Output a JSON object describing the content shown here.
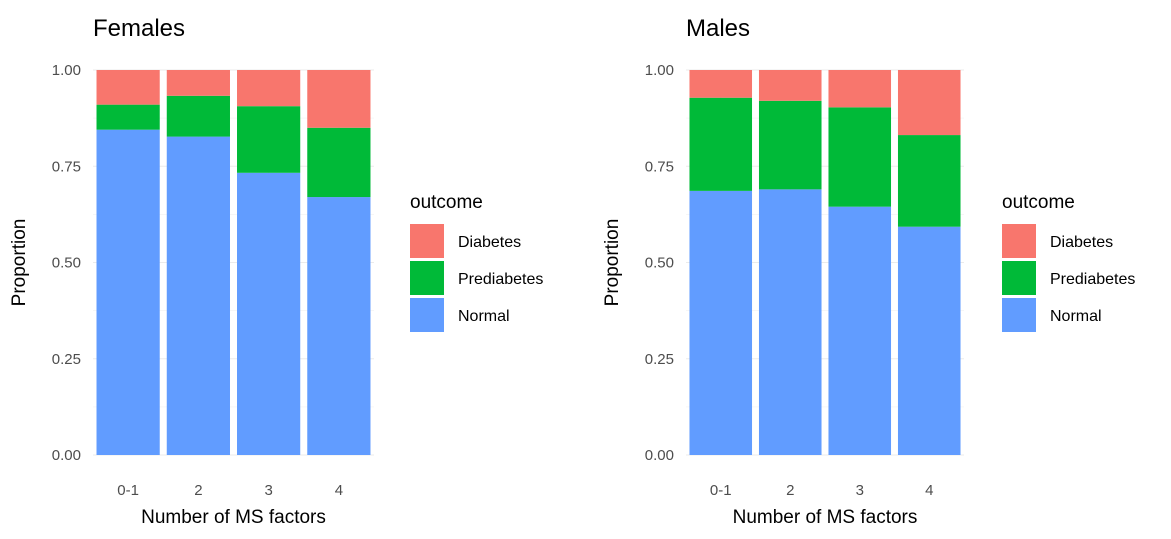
{
  "chart_data": [
    {
      "type": "bar",
      "stacked": true,
      "title": "Females",
      "xlabel": "Number of MS factors",
      "ylabel": "Proportion",
      "categories": [
        "0-1",
        "2",
        "3",
        "4"
      ],
      "ylim": [
        0,
        1
      ],
      "yticks": [
        "0.00",
        "0.25",
        "0.50",
        "0.75",
        "1.00"
      ],
      "series": [
        {
          "name": "Normal",
          "color": "#619CFF",
          "values": [
            0.845,
            0.827,
            0.733,
            0.67
          ]
        },
        {
          "name": "Prediabetes",
          "color": "#00BA38",
          "values": [
            0.065,
            0.106,
            0.173,
            0.18
          ]
        },
        {
          "name": "Diabetes",
          "color": "#F8766D",
          "values": [
            0.09,
            0.067,
            0.094,
            0.15
          ]
        }
      ],
      "legend": {
        "title": "outcome",
        "placement": "right",
        "items": [
          "Diabetes",
          "Prediabetes",
          "Normal"
        ]
      },
      "grid": true
    },
    {
      "type": "bar",
      "stacked": true,
      "title": "Males",
      "xlabel": "Number of MS factors",
      "ylabel": "Proportion",
      "categories": [
        "0-1",
        "2",
        "3",
        "4"
      ],
      "ylim": [
        0,
        1
      ],
      "yticks": [
        "0.00",
        "0.25",
        "0.50",
        "0.75",
        "1.00"
      ],
      "series": [
        {
          "name": "Normal",
          "color": "#619CFF",
          "values": [
            0.686,
            0.69,
            0.645,
            0.593
          ]
        },
        {
          "name": "Prediabetes",
          "color": "#00BA38",
          "values": [
            0.242,
            0.23,
            0.258,
            0.238
          ]
        },
        {
          "name": "Diabetes",
          "color": "#F8766D",
          "values": [
            0.072,
            0.08,
            0.097,
            0.169
          ]
        }
      ],
      "legend": {
        "title": "outcome",
        "placement": "right",
        "items": [
          "Diabetes",
          "Prediabetes",
          "Normal"
        ]
      },
      "grid": true
    }
  ]
}
